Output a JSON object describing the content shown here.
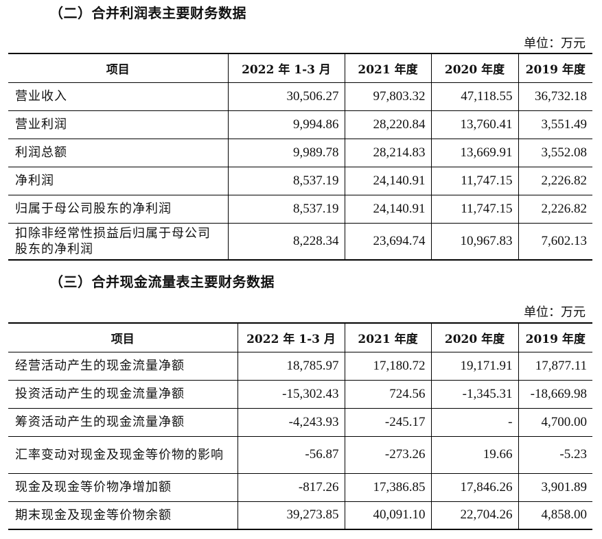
{
  "income_section": {
    "title": "（二）合并利润表主要财务数据",
    "unit": "单位：万元",
    "headers": [
      "项目",
      "2022 年 1-3 月",
      "2021 年度",
      "2020 年度",
      "2019 年度"
    ],
    "rows": [
      {
        "label": "营业收入",
        "values": [
          "30,506.27",
          "97,803.32",
          "47,118.55",
          "36,732.18"
        ]
      },
      {
        "label": "营业利润",
        "values": [
          "9,994.86",
          "28,220.84",
          "13,760.41",
          "3,551.49"
        ]
      },
      {
        "label": "利润总额",
        "values": [
          "9,989.78",
          "28,214.83",
          "13,669.91",
          "3,552.08"
        ]
      },
      {
        "label": "净利润",
        "values": [
          "8,537.19",
          "24,140.91",
          "11,747.15",
          "2,226.82"
        ]
      },
      {
        "label": "归属于母公司股东的净利润",
        "values": [
          "8,537.19",
          "24,140.91",
          "11,747.15",
          "2,226.82"
        ]
      },
      {
        "label": "扣除非经常性损益后归属于母公司股东的净利润",
        "values": [
          "8,228.34",
          "23,694.74",
          "10,967.83",
          "7,602.13"
        ]
      }
    ]
  },
  "cashflow_section": {
    "title": "（三）合并现金流量表主要财务数据",
    "unit": "单位：万元",
    "headers": [
      "项目",
      "2022 年 1-3 月",
      "2021 年度",
      "2020 年度",
      "2019 年度"
    ],
    "rows": [
      {
        "label": "经营活动产生的现金流量净额",
        "values": [
          "18,785.97",
          "17,180.72",
          "19,171.91",
          "17,877.11"
        ]
      },
      {
        "label": "投资活动产生的现金流量净额",
        "values": [
          "-15,302.43",
          "724.56",
          "-1,345.31",
          "-18,669.98"
        ]
      },
      {
        "label": "筹资活动产生的现金流量净额",
        "values": [
          "-4,243.93",
          "-245.17",
          "-",
          "4,700.00"
        ]
      },
      {
        "label": "汇率变动对现金及现金等价物的影响",
        "values": [
          "-56.87",
          "-273.26",
          "19.66",
          "-5.23"
        ]
      },
      {
        "label": "现金及现金等价物净增加额",
        "values": [
          "-817.26",
          "17,386.85",
          "17,846.26",
          "3,901.89"
        ]
      },
      {
        "label": "期末现金及现金等价物余额",
        "values": [
          "39,273.85",
          "40,091.10",
          "22,704.26",
          "4,858.00"
        ]
      }
    ]
  }
}
